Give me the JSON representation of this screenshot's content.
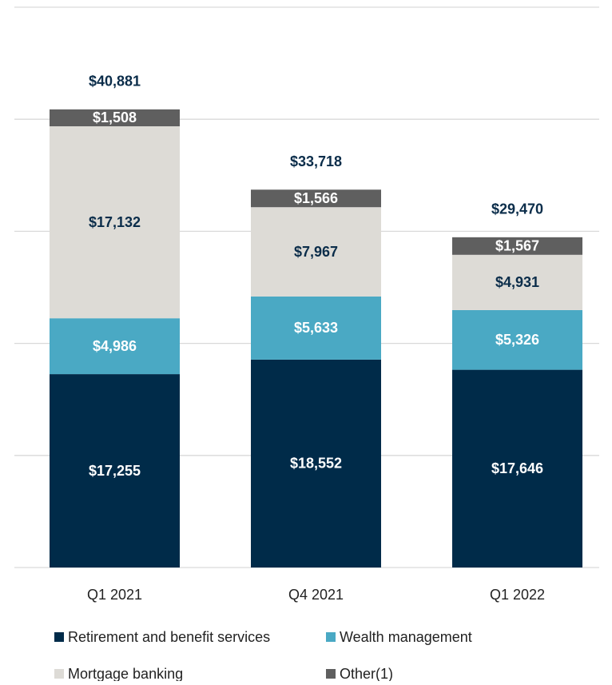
{
  "chart_data": {
    "type": "stacked_bar",
    "categories": [
      "Q1 2021",
      "Q4 2021",
      "Q1 2022"
    ],
    "series": [
      {
        "name": "Retirement and benefit services",
        "color": "#002b49",
        "values": [
          17255,
          18552,
          17646
        ],
        "value_labels": [
          "$17,255",
          "$18,552",
          "$17,646"
        ]
      },
      {
        "name": "Wealth management",
        "color": "#4aa9c4",
        "values": [
          4986,
          5633,
          5326
        ],
        "value_labels": [
          "$4,986",
          "$5,633",
          "$5,326"
        ]
      },
      {
        "name": "Mortgage banking",
        "color": "#dddbd6",
        "values": [
          17132,
          7967,
          4931
        ],
        "value_labels": [
          "$17,132",
          "$7,967",
          "$4,931"
        ]
      },
      {
        "name": "Other(1)",
        "color": "#5f5f5f",
        "values": [
          1508,
          1566,
          1567
        ],
        "value_labels": [
          "$1,508",
          "$1,566",
          "$1,567"
        ]
      }
    ],
    "totals": [
      40881,
      33718,
      29470
    ],
    "total_labels": [
      "$40,881",
      "$33,718",
      "$29,470"
    ],
    "ylim": [
      0,
      50000
    ],
    "yticks": [
      0,
      10000,
      20000,
      30000,
      40000,
      50000
    ],
    "grid": true
  }
}
